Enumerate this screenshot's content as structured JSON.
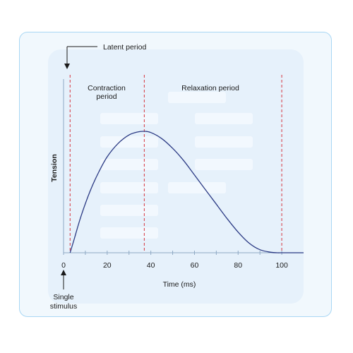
{
  "chart_data": {
    "type": "line",
    "xlabel": "Time (ms)",
    "ylabel": "Tension",
    "xlim": [
      0,
      110
    ],
    "xticks": [
      0,
      20,
      40,
      60,
      80,
      100
    ],
    "series": [
      {
        "x": [
          3,
          5,
          8,
          12,
          16,
          20,
          25,
          30,
          34,
          37,
          40,
          45,
          50,
          55,
          60,
          65,
          70,
          75,
          80,
          85,
          90,
          95,
          98,
          100,
          105,
          110
        ],
        "y": [
          0,
          0.12,
          0.3,
          0.5,
          0.66,
          0.79,
          0.9,
          0.97,
          0.995,
          1.0,
          0.99,
          0.94,
          0.86,
          0.76,
          0.64,
          0.52,
          0.4,
          0.28,
          0.17,
          0.08,
          0.025,
          0.004,
          0,
          0,
          0,
          0
        ],
        "color": "#2b3a84"
      }
    ],
    "reference_lines": [
      {
        "x": 3,
        "style": "dashed",
        "color": "#d6343d"
      },
      {
        "x": 37,
        "style": "dashed",
        "color": "#d6343d"
      },
      {
        "x": 100,
        "style": "dashed",
        "color": "#d6343d"
      }
    ],
    "annotations": {
      "latent_period": "Latent period",
      "contraction_line1": "Contraction",
      "contraction_line2": "period",
      "relaxation": "Relaxation period",
      "stimulus_line1": "Single",
      "stimulus_line2": "stimulus"
    },
    "colors": {
      "axis": "#8fa9c4",
      "arrow": "#1a1a1a",
      "curve": "#2b3a84",
      "marker_lines": "#d6343d"
    }
  }
}
